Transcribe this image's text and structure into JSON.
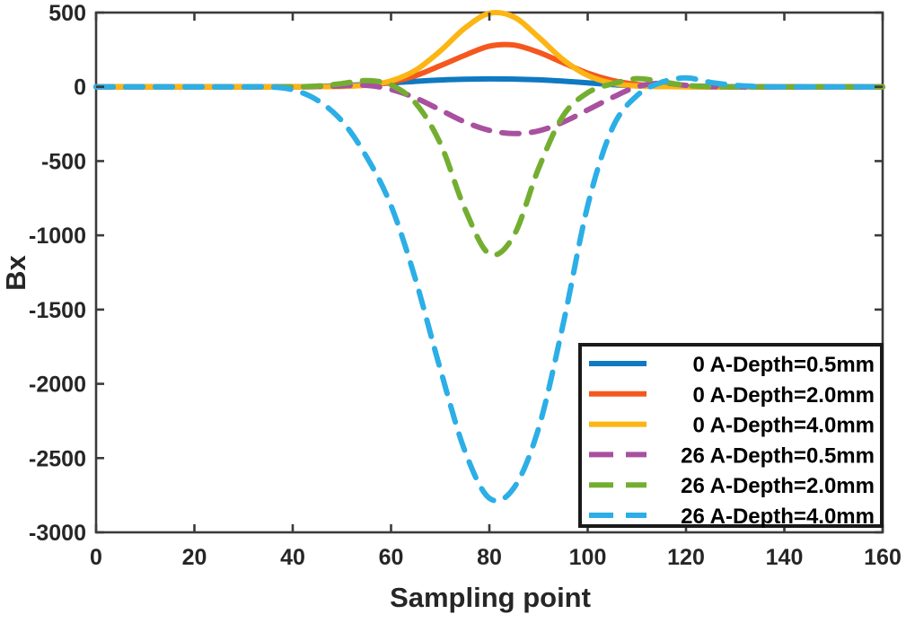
{
  "chart_data": {
    "type": "line",
    "title": "",
    "xlabel": "Sampling point",
    "ylabel": "Bx",
    "xlim": [
      0,
      160
    ],
    "ylim": [
      -3000,
      500
    ],
    "x_ticks": [
      0,
      20,
      40,
      60,
      80,
      100,
      120,
      140,
      160
    ],
    "y_ticks": [
      500,
      0,
      -500,
      -1000,
      -1500,
      -2000,
      -2500,
      -3000
    ],
    "grid": false,
    "axis_color": "#3b3b3b",
    "label_color": "#262626",
    "legend": {
      "position": "inside-bottom-right",
      "border_color": "#1a1a1a",
      "background": "#ffffff"
    },
    "x": [
      0,
      5,
      10,
      15,
      20,
      25,
      30,
      35,
      40,
      45,
      50,
      55,
      60,
      65,
      70,
      75,
      80,
      85,
      90,
      95,
      100,
      105,
      110,
      115,
      120,
      125,
      130,
      135,
      140,
      145,
      150,
      155,
      160
    ],
    "series": [
      {
        "name": "0 A-Depth=0.5mm",
        "color": "#0f79c2",
        "style": "solid",
        "values": [
          0,
          0,
          0,
          0,
          0,
          0,
          0,
          0,
          0,
          3,
          8,
          16,
          26,
          37,
          46,
          51,
          53,
          52,
          47,
          38,
          27,
          15,
          7,
          3,
          1,
          0,
          0,
          0,
          0,
          0,
          0,
          0,
          0
        ]
      },
      {
        "name": "0 A-Depth=2.0mm",
        "color": "#f4581e",
        "style": "solid",
        "values": [
          0,
          0,
          0,
          0,
          0,
          0,
          0,
          0,
          0,
          1,
          4,
          12,
          32,
          75,
          142,
          212,
          274,
          281,
          233,
          162,
          92,
          43,
          16,
          5,
          1,
          0,
          0,
          0,
          0,
          0,
          0,
          0,
          0
        ]
      },
      {
        "name": "0 A-Depth=4.0mm",
        "color": "#fcb514",
        "style": "solid",
        "values": [
          0,
          0,
          0,
          0,
          0,
          0,
          0,
          0,
          0,
          1,
          3,
          11,
          40,
          112,
          241,
          395,
          495,
          470,
          335,
          183,
          76,
          24,
          6,
          2,
          0,
          0,
          0,
          0,
          0,
          0,
          0,
          0,
          0
        ]
      },
      {
        "name": "26 A-Depth=0.5mm",
        "color": "#a8519f",
        "style": "dashed",
        "values": [
          0,
          0,
          0,
          0,
          0,
          0,
          0,
          0,
          0,
          2,
          6,
          10,
          -18,
          -75,
          -155,
          -236,
          -293,
          -315,
          -297,
          -238,
          -155,
          -72,
          0,
          25,
          10,
          2,
          0,
          0,
          0,
          0,
          0,
          0,
          0
        ]
      },
      {
        "name": "26 A-Depth=2.0mm",
        "color": "#74ae31",
        "style": "dashed",
        "values": [
          0,
          0,
          0,
          0,
          0,
          0,
          0,
          0,
          0,
          5,
          22,
          42,
          12,
          -110,
          -380,
          -820,
          -1125,
          -1000,
          -550,
          -195,
          -40,
          20,
          55,
          35,
          10,
          2,
          0,
          0,
          0,
          0,
          0,
          0,
          0
        ]
      },
      {
        "name": "26 A-Depth=4.0mm",
        "color": "#2caee6",
        "style": "dashed",
        "values": [
          0,
          0,
          0,
          0,
          0,
          0,
          0,
          0,
          -20,
          -90,
          -230,
          -470,
          -800,
          -1300,
          -1900,
          -2450,
          -2770,
          -2700,
          -2300,
          -1600,
          -800,
          -280,
          -60,
          30,
          60,
          30,
          10,
          2,
          0,
          0,
          0,
          0,
          0
        ]
      }
    ]
  }
}
